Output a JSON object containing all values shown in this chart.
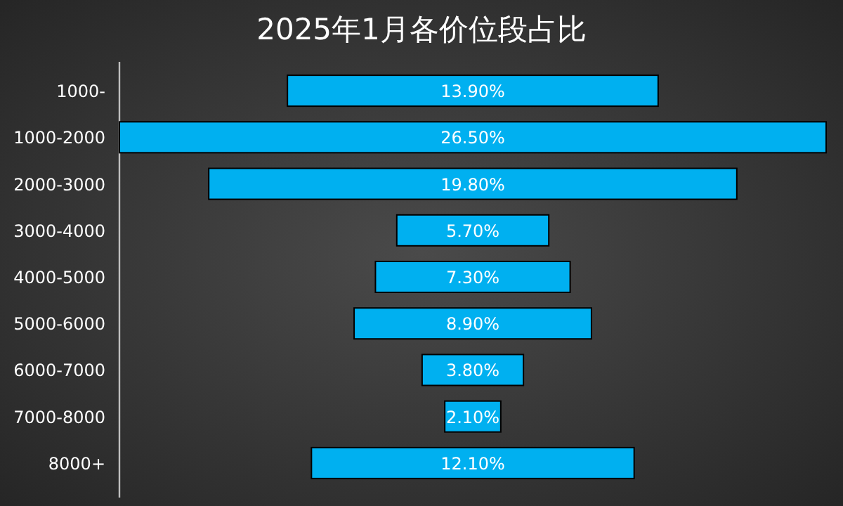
{
  "chart_data": {
    "type": "other",
    "title": "2025年1月各价位段占比",
    "categories": [
      "1000-",
      "1000-2000",
      "2000-3000",
      "3000-4000",
      "4000-5000",
      "5000-6000",
      "6000-7000",
      "7000-8000",
      "8000+"
    ],
    "values": [
      13.9,
      26.5,
      19.8,
      5.7,
      7.3,
      8.9,
      3.8,
      2.1,
      12.1
    ],
    "value_labels": [
      "13.90%",
      "26.50%",
      "19.80%",
      "5.70%",
      "7.30%",
      "8.90%",
      "3.80%",
      "2.10%",
      "12.10%"
    ],
    "color": "#00b0f0"
  }
}
